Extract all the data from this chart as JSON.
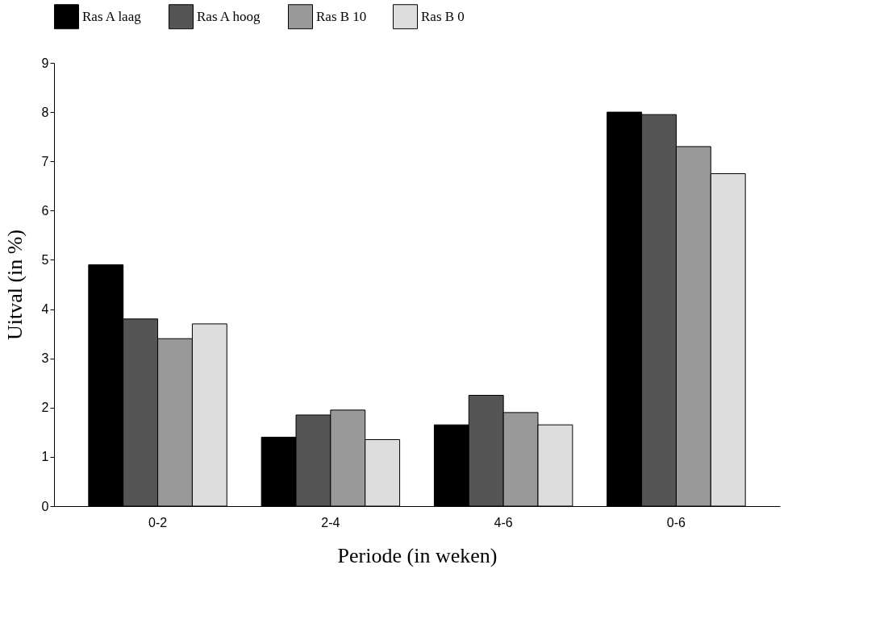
{
  "chart_data": {
    "type": "bar",
    "xlabel": "Periode (in weken)",
    "ylabel": "Uitval (in %)",
    "categories": [
      "0-2",
      "2-4",
      "4-6",
      "0-6"
    ],
    "series": [
      {
        "name": "Ras A laag",
        "color": "#000000",
        "values": [
          4.9,
          1.4,
          1.65,
          8.0
        ]
      },
      {
        "name": "Ras A hoog",
        "color": "#555555",
        "values": [
          3.8,
          1.85,
          2.25,
          7.95
        ]
      },
      {
        "name": "Ras B 10",
        "color": "#999999",
        "values": [
          3.4,
          1.95,
          1.9,
          7.3
        ]
      },
      {
        "name": "Ras B 0",
        "color": "#dddddd",
        "values": [
          3.7,
          1.35,
          1.65,
          6.75
        ]
      }
    ],
    "ylim": [
      0,
      9
    ],
    "yticks": [
      0,
      1,
      2,
      3,
      4,
      5,
      6,
      7,
      8,
      9
    ],
    "grid": false,
    "legend": "top"
  }
}
